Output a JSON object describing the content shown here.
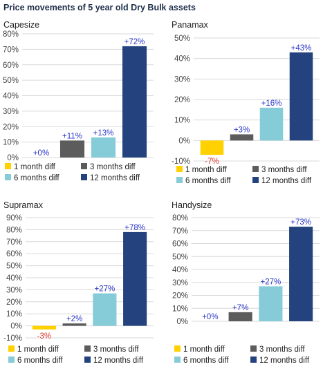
{
  "title": "Price movements of 5 year old Dry Bulk assets",
  "colors": {
    "1 month diff": "#ffd100",
    "3 months diff": "#5c5c5c",
    "6 months diff": "#86cbd8",
    "12 months diff": "#24437e",
    "positive_label": "#2a36c8",
    "negative_label": "#e03a2e",
    "axis_text": "#444444",
    "grid": "#d9d9d9",
    "title_text": "#1f2f4a"
  },
  "chart_data": [
    {
      "type": "bar",
      "title": "Capesize",
      "categories": [
        "1 month diff",
        "3 months diff",
        "6 months diff",
        "12 months diff"
      ],
      "values": [
        0,
        11,
        13,
        72
      ],
      "value_labels": [
        "+0%",
        "+11%",
        "+13%",
        "+72%"
      ],
      "ylim": [
        0,
        80
      ],
      "yticks": [
        0,
        10,
        20,
        30,
        40,
        50,
        60,
        70,
        80
      ],
      "ytick_labels": [
        "0%",
        "10%",
        "20%",
        "30%",
        "40%",
        "50%",
        "60%",
        "70%",
        "80%"
      ],
      "legend": [
        "1 month diff",
        "3 months diff",
        "6 months diff",
        "12 months diff"
      ],
      "legend_position": "bottom",
      "grid": true
    },
    {
      "type": "bar",
      "title": "Panamax",
      "categories": [
        "1 month diff",
        "3 months diff",
        "6 months diff",
        "12 months diff"
      ],
      "values": [
        -7,
        3,
        16,
        43
      ],
      "value_labels": [
        "-7%",
        "+3%",
        "+16%",
        "+43%"
      ],
      "ylim": [
        -10,
        50
      ],
      "yticks": [
        -10,
        0,
        10,
        20,
        30,
        40,
        50
      ],
      "ytick_labels": [
        "-10%",
        "0%",
        "10%",
        "20%",
        "30%",
        "40%",
        "50%"
      ],
      "legend": [
        "1 month diff",
        "3 months diff",
        "6 months diff",
        "12 months diff"
      ],
      "legend_position": "bottom",
      "grid": true
    },
    {
      "type": "bar",
      "title": "Supramax",
      "categories": [
        "1 month diff",
        "3 months diff",
        "6 months diff",
        "12 months diff"
      ],
      "values": [
        -3,
        2,
        27,
        78
      ],
      "value_labels": [
        "-3%",
        "+2%",
        "+27%",
        "+78%"
      ],
      "ylim": [
        -10,
        90
      ],
      "yticks": [
        -10,
        0,
        10,
        20,
        30,
        40,
        50,
        60,
        70,
        80,
        90
      ],
      "ytick_labels": [
        "-10%",
        "0%",
        "10%",
        "20%",
        "30%",
        "40%",
        "50%",
        "60%",
        "70%",
        "80%",
        "90%"
      ],
      "legend": [
        "1 month diff",
        "3 months diff",
        "6 months diff",
        "12 months diff"
      ],
      "legend_position": "bottom",
      "grid": true
    },
    {
      "type": "bar",
      "title": "Handysize",
      "categories": [
        "1 month diff",
        "3 months diff",
        "6 months diff",
        "12 months diff"
      ],
      "values": [
        0,
        7,
        27,
        73
      ],
      "value_labels": [
        "+0%",
        "+7%",
        "+27%",
        "+73%"
      ],
      "ylim": [
        0,
        80
      ],
      "yticks": [
        0,
        10,
        20,
        30,
        40,
        50,
        60,
        70,
        80
      ],
      "ytick_labels": [
        "0%",
        "10%",
        "20%",
        "30%",
        "40%",
        "50%",
        "60%",
        "70%",
        "80%"
      ],
      "legend": [
        "1 month diff",
        "3 months diff",
        "6 months diff",
        "12 months diff"
      ],
      "legend_position": "bottom",
      "grid": true
    }
  ]
}
